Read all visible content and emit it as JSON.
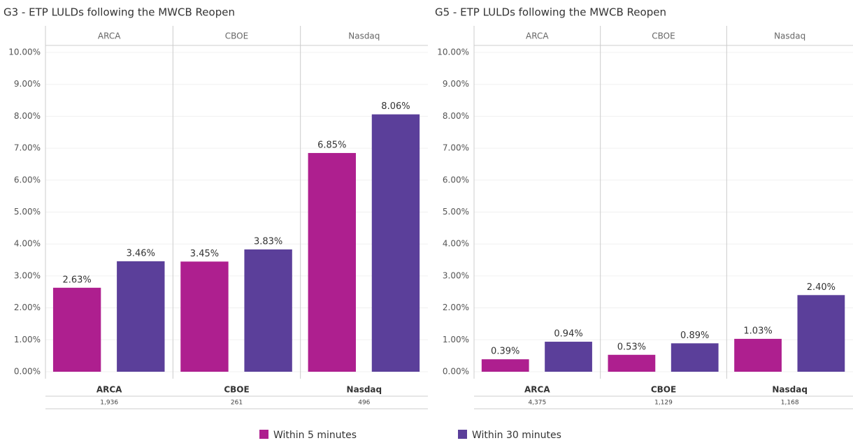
{
  "legend": [
    {
      "name": "Within 5 minutes",
      "color": "#ae1f8f"
    },
    {
      "name": "Within 30 minutes",
      "color": "#5b3f9a"
    }
  ],
  "chart_data": [
    {
      "type": "bar",
      "title": "G3 - ETP LULDs following the MWCB Reopen",
      "categories": [
        "ARCA",
        "CBOE",
        "Nasdaq"
      ],
      "counts": [
        "1,936",
        "261",
        "496"
      ],
      "series": [
        {
          "values": [
            2.63,
            3.45,
            6.85
          ],
          "value_labels": [
            "2.63%",
            "3.45%",
            "6.85%"
          ]
        },
        {
          "values": [
            3.46,
            3.83,
            8.06
          ],
          "value_labels": [
            "3.46%",
            "3.83%",
            "8.06%"
          ]
        }
      ],
      "ylim": [
        0,
        10
      ],
      "yticks": [
        {
          "value": 0,
          "label": "0.00%"
        },
        {
          "value": 1,
          "label": "1.00%"
        },
        {
          "value": 2,
          "label": "2.00%"
        },
        {
          "value": 3,
          "label": "3.00%"
        },
        {
          "value": 4,
          "label": "4.00%"
        },
        {
          "value": 5,
          "label": "5.00%"
        },
        {
          "value": 6,
          "label": "6.00%"
        },
        {
          "value": 7,
          "label": "7.00%"
        },
        {
          "value": 8,
          "label": "8.00%"
        },
        {
          "value": 9,
          "label": "9.00%"
        },
        {
          "value": 10,
          "label": "10.00%"
        }
      ],
      "grid": true
    },
    {
      "type": "bar",
      "title": "G5 - ETP LULDs following the MWCB Reopen",
      "categories": [
        "ARCA",
        "CBOE",
        "Nasdaq"
      ],
      "counts": [
        "4,375",
        "1,129",
        "1,168"
      ],
      "series": [
        {
          "values": [
            0.39,
            0.53,
            1.03
          ],
          "value_labels": [
            "0.39%",
            "0.53%",
            "1.03%"
          ]
        },
        {
          "values": [
            0.94,
            0.89,
            2.4
          ],
          "value_labels": [
            "0.94%",
            "0.89%",
            "2.40%"
          ]
        }
      ],
      "ylim": [
        0,
        10
      ],
      "yticks": [
        {
          "value": 0,
          "label": "0.00%"
        },
        {
          "value": 1,
          "label": "1.00%"
        },
        {
          "value": 2,
          "label": "2.00%"
        },
        {
          "value": 3,
          "label": "3.00%"
        },
        {
          "value": 4,
          "label": "4.00%"
        },
        {
          "value": 5,
          "label": "5.00%"
        },
        {
          "value": 6,
          "label": "6.00%"
        },
        {
          "value": 7,
          "label": "7.00%"
        },
        {
          "value": 8,
          "label": "8.00%"
        },
        {
          "value": 9,
          "label": "9.00%"
        },
        {
          "value": 10,
          "label": "10.00%"
        }
      ],
      "grid": true
    }
  ]
}
